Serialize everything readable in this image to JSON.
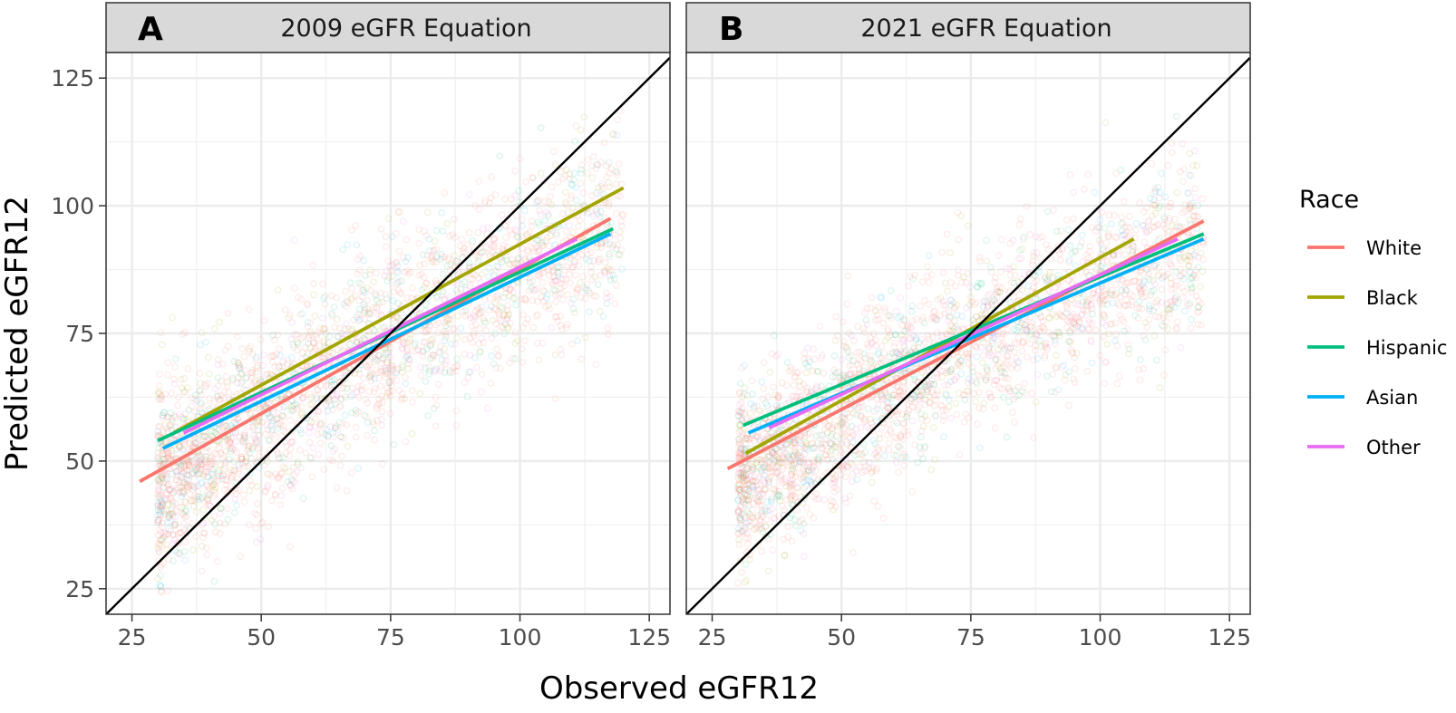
{
  "chart_data": {
    "type": "scatter",
    "xlabel": "Observed eGFR12",
    "ylabel": "Predicted eGFR12",
    "xlim": [
      20,
      129
    ],
    "ylim": [
      20,
      130
    ],
    "x_ticks": [
      25,
      50,
      75,
      100,
      125
    ],
    "y_ticks": [
      25,
      50,
      75,
      100,
      125
    ],
    "grid": true,
    "legend": {
      "title": "Race",
      "placement": "right",
      "entries": [
        {
          "name": "White",
          "color": "#F8766D"
        },
        {
          "name": "Black",
          "color": "#A3A500"
        },
        {
          "name": "Hispanic",
          "color": "#00BF7D"
        },
        {
          "name": "Asian",
          "color": "#00B0F6"
        },
        {
          "name": "Other",
          "color": "#E76BF3"
        }
      ]
    },
    "reference_line": {
      "type": "identity",
      "slope": 1,
      "intercept": 0,
      "color": "#000000"
    },
    "panels": [
      {
        "tag": "A",
        "title": "2009 eGFR Equation",
        "series": [
          {
            "name": "White",
            "color": "#F8766D",
            "fit": [
              [
                26.5,
                46.0
              ],
              [
                117.5,
                97.5
              ]
            ]
          },
          {
            "name": "Black",
            "color": "#A3A500",
            "fit": [
              [
                33.0,
                55.5
              ],
              [
                120.0,
                103.5
              ]
            ]
          },
          {
            "name": "Hispanic",
            "color": "#00BF7D",
            "fit": [
              [
                30.0,
                54.0
              ],
              [
                118.0,
                95.5
              ]
            ]
          },
          {
            "name": "Asian",
            "color": "#00B0F6",
            "fit": [
              [
                31.0,
                52.5
              ],
              [
                117.5,
                94.5
              ]
            ]
          },
          {
            "name": "Other",
            "color": "#E76BF3",
            "fit": [
              [
                35.0,
                55.5
              ],
              [
                111.0,
                93.5
              ]
            ]
          }
        ],
        "cloud": {
          "x_range": [
            30,
            120
          ],
          "y_center_at": [
            [
              30,
              45
            ],
            [
              75,
              75
            ],
            [
              120,
              97
            ]
          ],
          "spread": 22
        }
      },
      {
        "tag": "B",
        "title": "2021 eGFR Equation",
        "series": [
          {
            "name": "White",
            "color": "#F8766D",
            "fit": [
              [
                28.0,
                48.5
              ],
              [
                120.0,
                97.0
              ]
            ]
          },
          {
            "name": "Black",
            "color": "#A3A500",
            "fit": [
              [
                31.5,
                51.5
              ],
              [
                106.5,
                93.5
              ]
            ]
          },
          {
            "name": "Hispanic",
            "color": "#00BF7D",
            "fit": [
              [
                31.0,
                57.0
              ],
              [
                120.0,
                94.5
              ]
            ]
          },
          {
            "name": "Asian",
            "color": "#00B0F6",
            "fit": [
              [
                32.0,
                55.5
              ],
              [
                120.0,
                93.5
              ]
            ]
          },
          {
            "name": "Other",
            "color": "#E76BF3",
            "fit": [
              [
                36.0,
                56.5
              ],
              [
                115.0,
                93.5
              ]
            ]
          }
        ],
        "cloud": {
          "x_range": [
            30,
            120
          ],
          "y_center_at": [
            [
              30,
              47
            ],
            [
              75,
              74
            ],
            [
              120,
              92
            ]
          ],
          "spread": 20
        }
      }
    ]
  }
}
